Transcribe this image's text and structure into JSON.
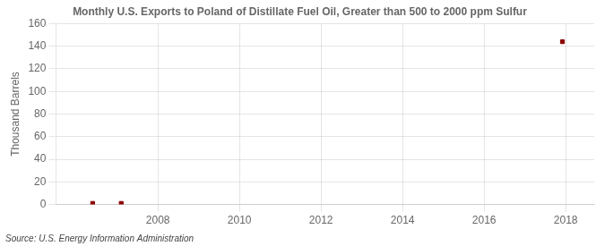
{
  "chart_data": {
    "type": "scatter",
    "title": "Monthly U.S. Exports to Poland of Distillate Fuel Oil, Greater than 500 to 2000 ppm Sulfur",
    "ylabel": "Thousand Barrels",
    "source": "Source: U.S. Energy Information Administration",
    "x": [
      2006.4,
      2007.1,
      2017.92
    ],
    "values": [
      1,
      1,
      144
    ],
    "color": "#8B0000",
    "marker": "square",
    "xlim": [
      2005.5,
      2018.7
    ],
    "xticks": [
      2008,
      2010,
      2012,
      2014,
      2016,
      2018
    ],
    "ylim": [
      0,
      160
    ],
    "yticks": [
      0,
      20,
      40,
      60,
      80,
      100,
      120,
      140,
      160
    ],
    "grid": true
  }
}
